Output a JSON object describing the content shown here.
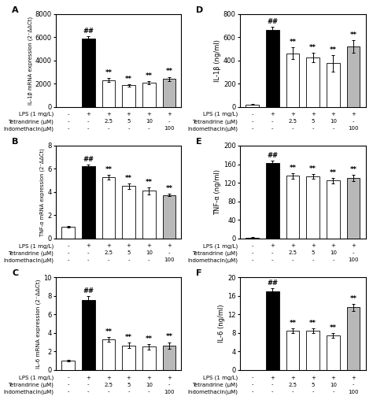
{
  "chart_data": [
    {
      "type": "bar",
      "title": "A",
      "ylabel": "IL-1β mRNA expression (2⁻ΔΔCt)",
      "ylim": [
        0,
        8000
      ],
      "yticks": [
        0,
        2000,
        4000,
        6000,
        8000
      ],
      "values": [
        0,
        5900,
        2300,
        1850,
        2050,
        2400
      ],
      "errors": [
        0,
        200,
        150,
        100,
        130,
        180
      ],
      "colors": [
        "white",
        "black",
        "white",
        "white",
        "white",
        "#b8b8b8"
      ],
      "annotations": [
        null,
        "##",
        "**",
        "**",
        "**",
        "**"
      ],
      "category_rows": [
        {
          "name": "LPS (1 mg/L)",
          "labels": [
            "-",
            "+",
            "+",
            "+",
            "+",
            "+"
          ]
        },
        {
          "name": "Tetrandrine (μM)",
          "labels": [
            "-",
            "-",
            "2.5",
            "5",
            "10",
            "-"
          ]
        },
        {
          "name": "Indomethacin(μM)",
          "labels": [
            "-",
            "-",
            "-",
            "-",
            "-",
            "100"
          ]
        }
      ]
    },
    {
      "type": "bar",
      "title": "B",
      "ylabel": "TNF-α mRNA expression (2⁻ΔΔCt)",
      "ylim": [
        0,
        8
      ],
      "yticks": [
        0,
        2,
        4,
        6,
        8
      ],
      "values": [
        1.0,
        6.25,
        5.3,
        4.5,
        4.1,
        3.75
      ],
      "errors": [
        0.05,
        0.1,
        0.2,
        0.25,
        0.3,
        0.12
      ],
      "colors": [
        "white",
        "black",
        "white",
        "white",
        "white",
        "#b8b8b8"
      ],
      "annotations": [
        null,
        "##",
        "**",
        "**",
        "**",
        "**"
      ],
      "category_rows": [
        {
          "name": "LPS (1 mg/L)",
          "labels": [
            "-",
            "+",
            "+",
            "+",
            "+",
            "+"
          ]
        },
        {
          "name": "Tetrandrine (μM)",
          "labels": [
            "-",
            "-",
            "2.5",
            "5",
            "10",
            "-"
          ]
        },
        {
          "name": "Indomethacin(μM)",
          "labels": [
            "-",
            "-",
            "-",
            "-",
            "-",
            "100"
          ]
        }
      ]
    },
    {
      "type": "bar",
      "title": "C",
      "ylabel": "IL-6 mRNA expression (2⁻ΔΔCt)",
      "ylim": [
        0,
        10
      ],
      "yticks": [
        0,
        2,
        4,
        6,
        8,
        10
      ],
      "values": [
        1.0,
        7.55,
        3.3,
        2.65,
        2.5,
        2.65
      ],
      "errors": [
        0.08,
        0.4,
        0.25,
        0.3,
        0.3,
        0.35
      ],
      "colors": [
        "white",
        "black",
        "white",
        "white",
        "white",
        "#b8b8b8"
      ],
      "annotations": [
        null,
        "##",
        "**",
        "**",
        "**",
        "**"
      ],
      "category_rows": [
        {
          "name": "LPS (1 mg/L)",
          "labels": [
            "-",
            "+",
            "+",
            "+",
            "+",
            "+"
          ]
        },
        {
          "name": "Tetrandrine (μM)",
          "labels": [
            "-",
            "-",
            "2.5",
            "5",
            "10",
            "-"
          ]
        },
        {
          "name": "Indomethacin(μM)",
          "labels": [
            "-",
            "-",
            "-",
            "-",
            "-",
            "100"
          ]
        }
      ]
    },
    {
      "type": "bar",
      "title": "D",
      "ylabel": "IL-1β (ng/ml)",
      "ylim": [
        0,
        800
      ],
      "yticks": [
        0,
        200,
        400,
        600,
        800
      ],
      "values": [
        20,
        660,
        460,
        425,
        375,
        520
      ],
      "errors": [
        5,
        30,
        50,
        40,
        70,
        55
      ],
      "colors": [
        "white",
        "black",
        "white",
        "white",
        "white",
        "#b8b8b8"
      ],
      "annotations": [
        null,
        "##",
        "**",
        "**",
        "**",
        "**"
      ],
      "category_rows": [
        {
          "name": "LPS (1 mg/L)",
          "labels": [
            "-",
            "+",
            "+",
            "+",
            "+",
            "+"
          ]
        },
        {
          "name": "Tetrandrine (μM)",
          "labels": [
            "-",
            "-",
            "2.5",
            "5",
            "10",
            "-"
          ]
        },
        {
          "name": "Indomethacin(μM)",
          "labels": [
            "-",
            "-",
            "-",
            "-",
            "-",
            "100"
          ]
        }
      ]
    },
    {
      "type": "bar",
      "title": "E",
      "ylabel": "TNF-α (ng/ml)",
      "ylim": [
        0,
        200
      ],
      "yticks": [
        0,
        40,
        80,
        120,
        160,
        200
      ],
      "values": [
        2,
        162,
        135,
        133,
        125,
        130
      ],
      "errors": [
        1,
        5,
        6,
        5,
        6,
        7
      ],
      "colors": [
        "white",
        "black",
        "white",
        "white",
        "white",
        "#b8b8b8"
      ],
      "annotations": [
        null,
        "##",
        "**",
        "**",
        "**",
        "**"
      ],
      "category_rows": [
        {
          "name": "LPS (1 mg/L)",
          "labels": [
            "-",
            "+",
            "+",
            "+",
            "+",
            "+"
          ]
        },
        {
          "name": "Tetrandrine (μM)",
          "labels": [
            "-",
            "-",
            "2.5",
            "5",
            "10",
            "-"
          ]
        },
        {
          "name": "Indomethacin(μM)",
          "labels": [
            "-",
            "-",
            "-",
            "-",
            "-",
            "100"
          ]
        }
      ]
    },
    {
      "type": "bar",
      "title": "F",
      "ylabel": "IL-6 (ng/ml)",
      "ylim": [
        0,
        20
      ],
      "yticks": [
        0,
        4,
        8,
        12,
        16,
        20
      ],
      "values": [
        0,
        17,
        8.5,
        8.5,
        7.5,
        13.5
      ],
      "errors": [
        0,
        0.7,
        0.5,
        0.5,
        0.5,
        0.7
      ],
      "colors": [
        "white",
        "black",
        "white",
        "white",
        "white",
        "#b8b8b8"
      ],
      "annotations": [
        null,
        "##",
        "**",
        "**",
        "**",
        "**"
      ],
      "category_rows": [
        {
          "name": "LPS (1 mg/L)",
          "labels": [
            "-",
            "+",
            "+",
            "+",
            "+",
            "+"
          ]
        },
        {
          "name": "Tetrandrine (μM)",
          "labels": [
            "-",
            "-",
            "2.5",
            "5",
            "10",
            "-"
          ]
        },
        {
          "name": "Indomethacin(μM)",
          "labels": [
            "-",
            "-",
            "-",
            "-",
            "-",
            "100"
          ]
        }
      ]
    }
  ]
}
